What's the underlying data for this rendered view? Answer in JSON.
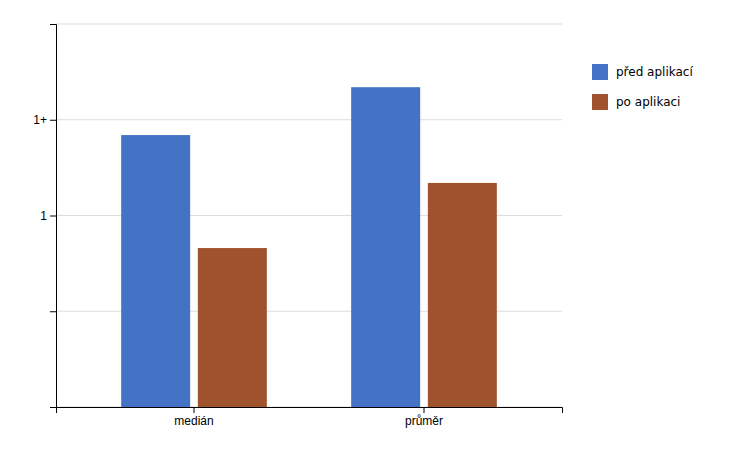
{
  "chart_data": {
    "type": "bar",
    "categories": [
      "medián",
      "průměr"
    ],
    "series": [
      {
        "name": "před aplikací",
        "color": "#4472C4",
        "values": [
          1.42,
          1.67
        ]
      },
      {
        "name": "po aplikaci",
        "color": "#A0522D",
        "values": [
          0.83,
          1.17
        ]
      }
    ],
    "ylim": [
      0,
      2.0
    ],
    "yticks": [
      {
        "value": 0.0,
        "label": null
      },
      {
        "value": 0.5,
        "label": null
      },
      1,
      {
        "value": 1.5,
        "label": "1+"
      },
      {
        "value": 2.0,
        "label": null
      }
    ],
    "grid": true,
    "legend": "right"
  }
}
